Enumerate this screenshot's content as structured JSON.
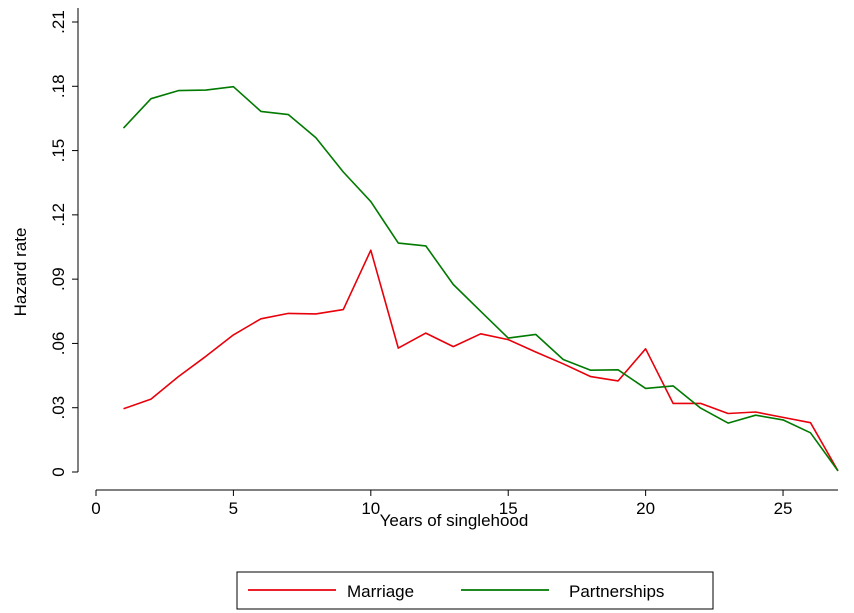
{
  "chart_data": {
    "type": "line",
    "xlabel": "Years of singlehood",
    "ylabel": "Hazard rate",
    "xlim": [
      0,
      27
    ],
    "ylim": [
      0,
      0.21
    ],
    "x_ticks": [
      0,
      5,
      10,
      15,
      20,
      25
    ],
    "x_tick_labels": [
      "0",
      "5",
      "10",
      "15",
      "20",
      "25"
    ],
    "y_ticks": [
      0,
      0.03,
      0.06,
      0.09,
      0.12,
      0.15,
      0.18,
      0.21
    ],
    "y_tick_labels": [
      "0",
      ".03",
      ".06",
      ".09",
      ".12",
      ".15",
      ".18",
      ".21"
    ],
    "grid": false,
    "legend_position": "bottom",
    "x": [
      1,
      2,
      3,
      4,
      5,
      6,
      7,
      8,
      9,
      10,
      11,
      12,
      13,
      14,
      15,
      16,
      17,
      18,
      19,
      20,
      21,
      22,
      23,
      24,
      25,
      26,
      27
    ],
    "series": [
      {
        "name": "Marriage",
        "color": "#e8000b",
        "values": [
          0.0295,
          0.034,
          0.0445,
          0.054,
          0.064,
          0.0715,
          0.074,
          0.0738,
          0.0758,
          0.1035,
          0.0578,
          0.0648,
          0.0585,
          0.0645,
          0.0618,
          0.056,
          0.0505,
          0.0445,
          0.0425,
          0.0575,
          0.032,
          0.032,
          0.0273,
          0.028,
          0.0255,
          0.023,
          0.0005
        ]
      },
      {
        "name": "Partnerships",
        "color": "#007a00",
        "values": [
          0.1605,
          0.1742,
          0.178,
          0.1782,
          0.1798,
          0.1683,
          0.1668,
          0.156,
          0.14,
          0.1262,
          0.1068,
          0.1055,
          0.0875,
          0.075,
          0.0625,
          0.0642,
          0.0525,
          0.0475,
          0.0477,
          0.039,
          0.0402,
          0.0298,
          0.0228,
          0.0265,
          0.0243,
          0.0183,
          0.0005
        ]
      }
    ]
  }
}
